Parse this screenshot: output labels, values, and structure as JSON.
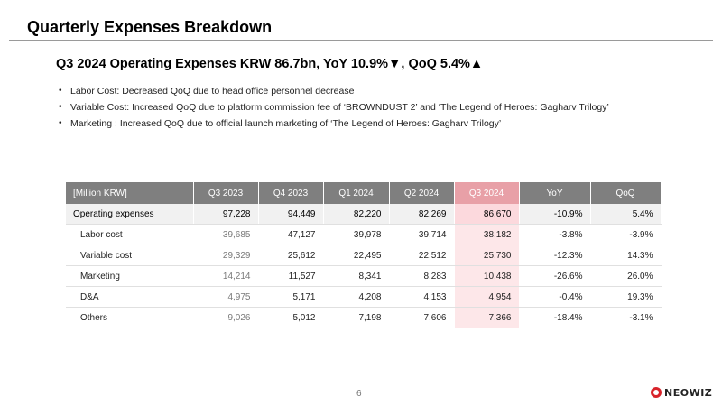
{
  "page": {
    "title": "Quarterly Expenses Breakdown",
    "number": "6"
  },
  "headline": "Q3 2024 Operating Expenses KRW 86.7bn, YoY 10.9%▼, QoQ 5.4%▲",
  "bullets": [
    "Labor Cost: Decreased QoQ due to head office personnel decrease",
    "Variable Cost: Increased QoQ due to platform commission fee of ‘BROWNDUST 2’ and ‘The Legend of Heroes: Gagharv Trilogy’",
    "Marketing : Increased QoQ due to official launch marketing of ‘The Legend of Heroes: Gagharv Trilogy’"
  ],
  "table": {
    "headers": [
      "[Million KRW]",
      "Q3 2023",
      "Q4 2023",
      "Q1 2024",
      "Q2 2024",
      "Q3 2024",
      "YoY",
      "QoQ"
    ],
    "rows": [
      [
        "Operating expenses",
        "97,228",
        "94,449",
        "82,220",
        "82,269",
        "86,670",
        "-10.9%",
        "5.4%"
      ],
      [
        "Labor cost",
        "39,685",
        "47,127",
        "39,978",
        "39,714",
        "38,182",
        "-3.8%",
        "-3.9%"
      ],
      [
        "Variable cost",
        "29,329",
        "25,612",
        "22,495",
        "22,512",
        "25,730",
        "-12.3%",
        "14.3%"
      ],
      [
        "Marketing",
        "14,214",
        "11,527",
        "8,341",
        "8,283",
        "10,438",
        "-26.6%",
        "26.0%"
      ],
      [
        "D&A",
        "4,975",
        "5,171",
        "4,208",
        "4,153",
        "4,954",
        "-0.4%",
        "19.3%"
      ],
      [
        "Others",
        "9,026",
        "5,012",
        "7,198",
        "7,606",
        "7,366",
        "-18.4%",
        "-3.1%"
      ]
    ]
  },
  "colors": {
    "header_bg": "#7f7f7f",
    "highlight_header": "#e8a0a7",
    "highlight_cell": "#fde7e9",
    "brand_red": "#d8232a"
  },
  "logo": {
    "text": "NEOWIZ",
    "icon": "neowiz-logo-icon"
  }
}
